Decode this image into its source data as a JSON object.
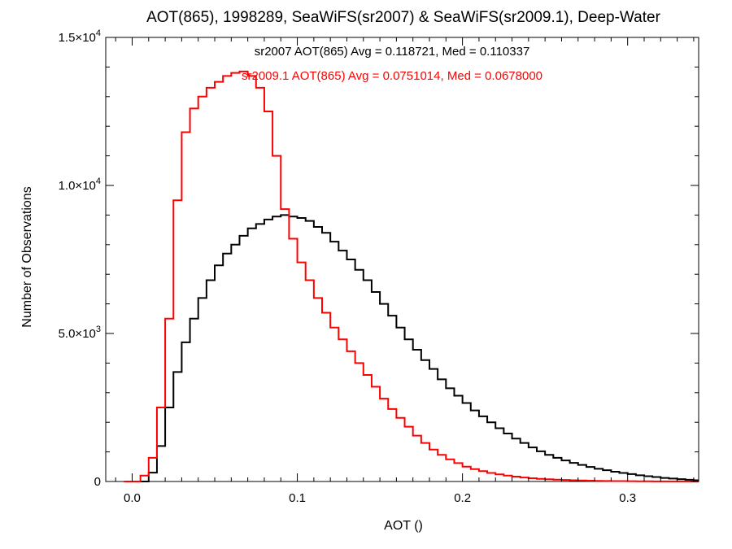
{
  "chart_data": {
    "type": "line",
    "title": "AOT(865), 1998289, SeaWiFS(sr2007) & SeaWiFS(sr2009.1), Deep-Water",
    "xlabel": "AOT ()",
    "ylabel": "Number of Observations",
    "xlim": [
      -0.016,
      0.343
    ],
    "ylim": [
      0,
      15000
    ],
    "x_ticks": [
      0.0,
      0.1,
      0.2,
      0.3
    ],
    "x_tick_labels": [
      "0.0",
      "0.1",
      "0.2",
      "0.3"
    ],
    "y_ticks": [
      0,
      5000,
      10000,
      15000
    ],
    "y_tick_labels": [
      {
        "base": "0",
        "exp": ""
      },
      {
        "base": "5.0×10",
        "exp": "3"
      },
      {
        "base": "1.0×10",
        "exp": "4"
      },
      {
        "base": "1.5×10",
        "exp": "4"
      }
    ],
    "grid": false,
    "annotations": [
      {
        "text": "sr2007 AOT(865) Avg = 0.118721, Med = 0.110337",
        "color": "#000000"
      },
      {
        "text": "sr2009.1 AOT(865) Avg = 0.0751014, Med = 0.0678000",
        "color": "#ff0000"
      }
    ],
    "series": [
      {
        "color": "#000000",
        "x": [
          0.0,
          0.005,
          0.01,
          0.015,
          0.02,
          0.025,
          0.03,
          0.035,
          0.04,
          0.045,
          0.05,
          0.055,
          0.06,
          0.065,
          0.07,
          0.075,
          0.08,
          0.085,
          0.09,
          0.095,
          0.1,
          0.105,
          0.11,
          0.115,
          0.12,
          0.125,
          0.13,
          0.135,
          0.14,
          0.145,
          0.15,
          0.155,
          0.16,
          0.165,
          0.17,
          0.175,
          0.18,
          0.185,
          0.19,
          0.195,
          0.2,
          0.205,
          0.21,
          0.215,
          0.22,
          0.225,
          0.23,
          0.235,
          0.24,
          0.245,
          0.25,
          0.255,
          0.26,
          0.265,
          0.27,
          0.275,
          0.28,
          0.285,
          0.29,
          0.295,
          0.3,
          0.305,
          0.31,
          0.315,
          0.32,
          0.325,
          0.33,
          0.335,
          0.34
        ],
        "y": [
          0,
          0,
          300,
          1200,
          2500,
          3700,
          4700,
          5500,
          6200,
          6800,
          7300,
          7700,
          8000,
          8300,
          8550,
          8700,
          8850,
          8950,
          9000,
          8950,
          8900,
          8800,
          8600,
          8400,
          8100,
          7800,
          7500,
          7150,
          6800,
          6400,
          6000,
          5600,
          5200,
          4800,
          4450,
          4100,
          3800,
          3450,
          3150,
          2900,
          2650,
          2400,
          2200,
          2000,
          1800,
          1620,
          1450,
          1300,
          1150,
          1020,
          900,
          800,
          710,
          630,
          560,
          490,
          430,
          380,
          330,
          290,
          250,
          210,
          180,
          150,
          120,
          100,
          80,
          60,
          40
        ]
      },
      {
        "color": "#ff0000",
        "x": [
          -0.005,
          0.0,
          0.005,
          0.01,
          0.015,
          0.02,
          0.025,
          0.03,
          0.035,
          0.04,
          0.045,
          0.05,
          0.055,
          0.06,
          0.065,
          0.07,
          0.075,
          0.08,
          0.085,
          0.09,
          0.095,
          0.1,
          0.105,
          0.11,
          0.115,
          0.12,
          0.125,
          0.13,
          0.135,
          0.14,
          0.145,
          0.15,
          0.155,
          0.16,
          0.165,
          0.17,
          0.175,
          0.18,
          0.185,
          0.19,
          0.195,
          0.2,
          0.205,
          0.21,
          0.215,
          0.22,
          0.225,
          0.23,
          0.235,
          0.24,
          0.245,
          0.25,
          0.255,
          0.26,
          0.265,
          0.27,
          0.275,
          0.28,
          0.285,
          0.29,
          0.295,
          0.3,
          0.305,
          0.31,
          0.315,
          0.32,
          0.325,
          0.33,
          0.335,
          0.34
        ],
        "y": [
          0,
          0,
          200,
          800,
          2500,
          5500,
          9500,
          11800,
          12600,
          13000,
          13300,
          13500,
          13700,
          13800,
          13850,
          13700,
          13300,
          12500,
          11000,
          9200,
          8200,
          7400,
          6800,
          6200,
          5700,
          5200,
          4800,
          4400,
          4000,
          3600,
          3200,
          2800,
          2450,
          2150,
          1850,
          1550,
          1300,
          1080,
          900,
          750,
          620,
          500,
          420,
          350,
          290,
          240,
          200,
          165,
          135,
          110,
          90,
          75,
          62,
          50,
          42,
          35,
          28,
          22,
          18,
          15,
          12,
          10,
          8,
          6,
          5,
          4,
          3,
          2,
          2,
          1
        ]
      }
    ]
  }
}
